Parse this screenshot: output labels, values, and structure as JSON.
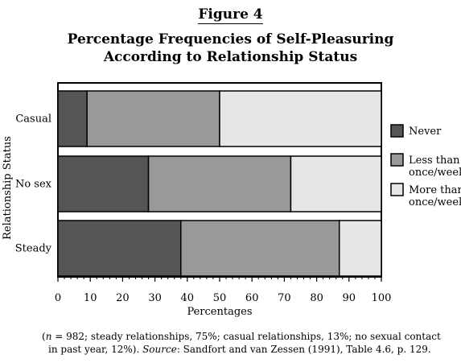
{
  "figure_label": "Figure 4",
  "title_line1": "Percentage Frequencies of Self-Pleasuring",
  "title_line2": "According to Relationship Status",
  "caption": {
    "n_symbol": "n",
    "line1_rest": " = 982; steady relationships, 75%; casual relationships, 13%; no sexual contact",
    "line2_start": "in past year, 12%). ",
    "source_label": "Source",
    "line2_end": ": Sandfort and van Zessen (1991), Table 4.6, p. 129."
  },
  "colors": {
    "never": "#555555",
    "less": "#999999",
    "more": "#e6e6e6",
    "stroke": "#000000"
  },
  "chart_data": {
    "type": "bar",
    "orientation": "horizontal",
    "stacked": true,
    "title": "Percentage Frequencies of Self-Pleasuring According to Relationship Status",
    "xlabel": "Percentages",
    "ylabel": "Relationship Status",
    "xlim": [
      0,
      100
    ],
    "xticks": [
      0,
      10,
      20,
      30,
      40,
      50,
      60,
      70,
      80,
      90,
      100
    ],
    "categories": [
      "Casual",
      "No sex",
      "Steady"
    ],
    "series": [
      {
        "name": "Never",
        "values": [
          9,
          28,
          38
        ],
        "color_key": "never"
      },
      {
        "name": "Less than once/week",
        "values": [
          41,
          44,
          49
        ],
        "color_key": "less",
        "legend_lines": [
          "Less than",
          "once/week"
        ]
      },
      {
        "name": "More than once/week",
        "values": [
          50,
          28,
          13
        ],
        "color_key": "more",
        "legend_lines": [
          "More than",
          "once/week"
        ]
      }
    ],
    "legend_position": "right",
    "grid": false
  }
}
